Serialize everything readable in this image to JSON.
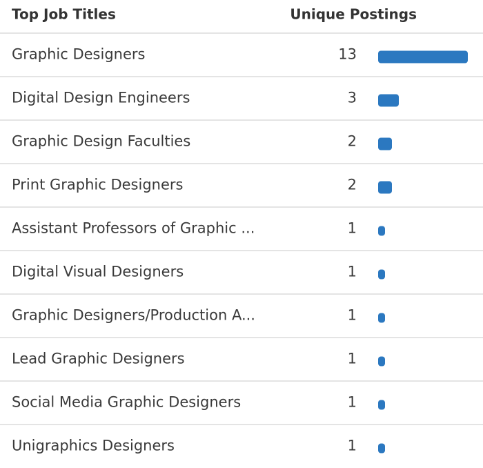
{
  "chart_data": {
    "type": "bar",
    "columns": [
      "Top Job Titles",
      "Unique Postings"
    ],
    "categories": [
      "Graphic Designers",
      "Digital Design Engineers",
      "Graphic Design Faculties",
      "Print Graphic Designers",
      "Assistant Professors of Graphic ...",
      "Digital Visual Designers",
      "Graphic Designers/Production A...",
      "Lead Graphic Designers",
      "Social Media Graphic Designers",
      "Unigraphics Designers"
    ],
    "values": [
      13,
      3,
      2,
      2,
      1,
      1,
      1,
      1,
      1,
      1
    ],
    "color": "#2b78c0"
  }
}
